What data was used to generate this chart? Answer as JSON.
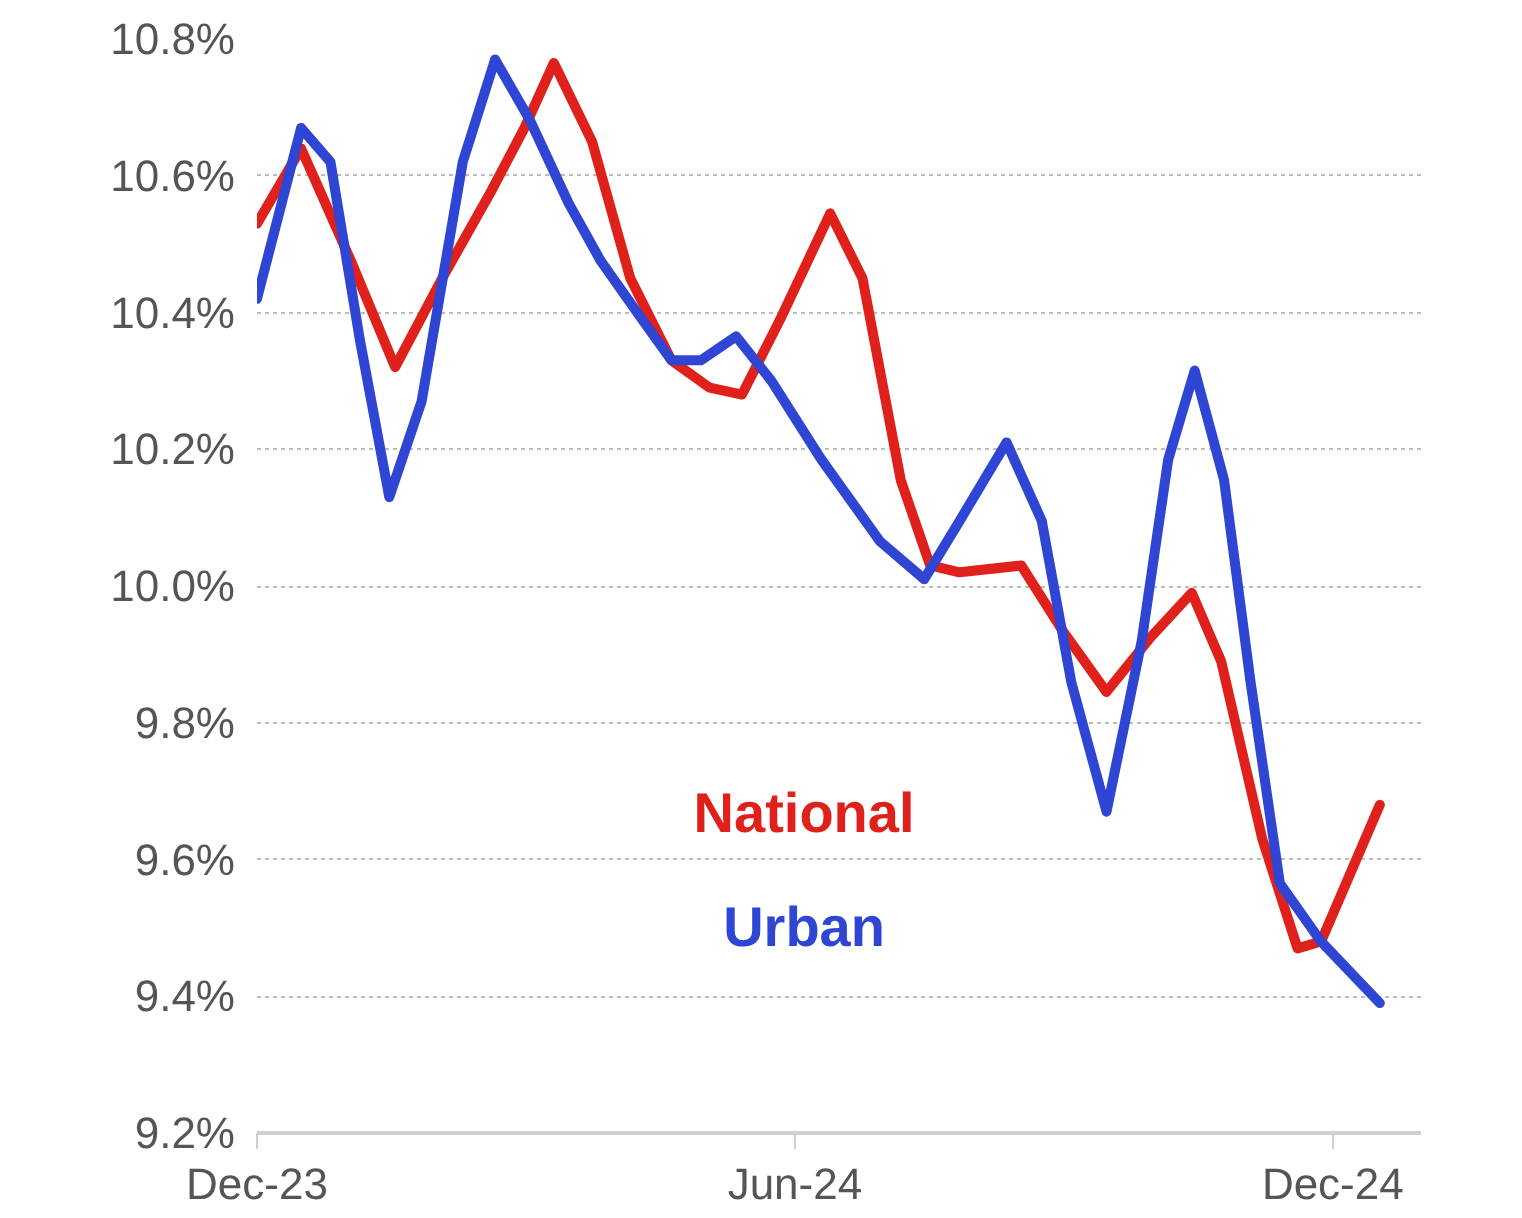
{
  "chart_data": {
    "type": "line",
    "xlim": [
      "2023-12-01",
      "2024-12-31"
    ],
    "ylim": [
      9.2,
      10.8
    ],
    "xticks": [
      {
        "value": "2023-12-01",
        "label": "Dec-23"
      },
      {
        "value": "2024-06-01",
        "label": "Jun-24"
      },
      {
        "value": "2024-12-01",
        "label": "Dec-24"
      }
    ],
    "yticks": [
      {
        "value": 9.2,
        "label": "9.2%"
      },
      {
        "value": 9.4,
        "label": "9.4%"
      },
      {
        "value": 9.6,
        "label": "9.6%"
      },
      {
        "value": 9.8,
        "label": "9.8%"
      },
      {
        "value": 10.0,
        "label": "10.0%"
      },
      {
        "value": 10.2,
        "label": "10.2%"
      },
      {
        "value": 10.4,
        "label": "10.4%"
      },
      {
        "value": 10.6,
        "label": "10.6%"
      },
      {
        "value": 10.8,
        "label": "10.8%"
      }
    ],
    "grid": "y",
    "legend": false,
    "marker": "none",
    "line_style": "solid",
    "series": [
      {
        "name": "National",
        "color": "#e0201a",
        "x": [
          "2023-12-01",
          "2023-12-16",
          "2024-01-02",
          "2024-01-17",
          "2024-02-02",
          "2024-02-19",
          "2024-03-01",
          "2024-03-11",
          "2024-03-24",
          "2024-04-06",
          "2024-04-20",
          "2024-05-03",
          "2024-05-14",
          "2024-05-27",
          "2024-06-13",
          "2024-06-24",
          "2024-07-07",
          "2024-07-17",
          "2024-07-27",
          "2024-08-17",
          "2024-08-31",
          "2024-09-15",
          "2024-09-30",
          "2024-10-14",
          "2024-10-24",
          "2024-11-07",
          "2024-11-19",
          "2024-11-27",
          "2024-12-17"
        ],
        "values": [
          10.53,
          10.64,
          10.475,
          10.32,
          10.45,
          10.58,
          10.67,
          10.765,
          10.65,
          10.45,
          10.33,
          10.29,
          10.28,
          10.39,
          10.545,
          10.45,
          10.155,
          10.03,
          10.02,
          10.03,
          9.935,
          9.845,
          9.925,
          9.99,
          9.89,
          9.63,
          9.47,
          9.48,
          9.68
        ]
      },
      {
        "name": "Urban",
        "color": "#2f45d4",
        "x": [
          "2023-12-01",
          "2023-12-16",
          "2023-12-26",
          "2024-01-05",
          "2024-01-15",
          "2024-01-26",
          "2024-02-09",
          "2024-02-20",
          "2024-03-03",
          "2024-03-16",
          "2024-03-27",
          "2024-04-10",
          "2024-04-20",
          "2024-04-30",
          "2024-05-12",
          "2024-05-24",
          "2024-06-10",
          "2024-06-30",
          "2024-07-15",
          "2024-07-27",
          "2024-08-12",
          "2024-08-24",
          "2024-09-03",
          "2024-09-15",
          "2024-09-27",
          "2024-10-06",
          "2024-10-15",
          "2024-10-25",
          "2024-11-03",
          "2024-11-13",
          "2024-11-27",
          "2024-12-17"
        ],
        "values": [
          10.42,
          10.67,
          10.62,
          10.36,
          10.13,
          10.27,
          10.62,
          10.77,
          10.68,
          10.56,
          10.475,
          10.39,
          10.33,
          10.33,
          10.365,
          10.3,
          10.185,
          10.065,
          10.01,
          10.095,
          10.21,
          10.095,
          9.86,
          9.67,
          9.92,
          10.185,
          10.315,
          10.155,
          9.86,
          9.565,
          9.48,
          9.39
        ]
      }
    ]
  }
}
